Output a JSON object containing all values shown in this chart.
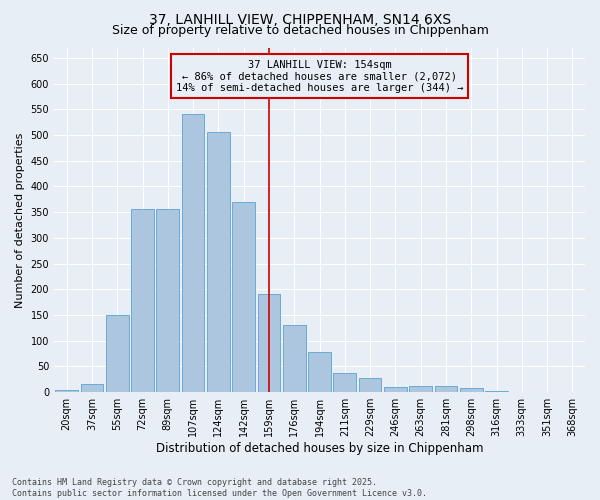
{
  "title_line1": "37, LANHILL VIEW, CHIPPENHAM, SN14 6XS",
  "title_line2": "Size of property relative to detached houses in Chippenham",
  "xlabel": "Distribution of detached houses by size in Chippenham",
  "ylabel": "Number of detached properties",
  "categories": [
    "20sqm",
    "37sqm",
    "55sqm",
    "72sqm",
    "89sqm",
    "107sqm",
    "124sqm",
    "142sqm",
    "159sqm",
    "176sqm",
    "194sqm",
    "211sqm",
    "229sqm",
    "246sqm",
    "263sqm",
    "281sqm",
    "298sqm",
    "316sqm",
    "333sqm",
    "351sqm",
    "368sqm"
  ],
  "values": [
    5,
    15,
    150,
    357,
    357,
    540,
    505,
    370,
    190,
    130,
    78,
    37,
    28,
    10,
    13,
    13,
    9,
    2,
    1,
    1,
    1
  ],
  "bar_color": "#adc6e0",
  "bar_edge_color": "#6aaad4",
  "vline_x": 8.0,
  "vline_color": "#cc0000",
  "annotation_line1": "37 LANHILL VIEW: 154sqm",
  "annotation_line2": "← 86% of detached houses are smaller (2,072)",
  "annotation_line3": "14% of semi-detached houses are larger (344) →",
  "annotation_box_color": "#cc0000",
  "annotation_fontsize": 7.5,
  "ylim": [
    0,
    670
  ],
  "yticks": [
    0,
    50,
    100,
    150,
    200,
    250,
    300,
    350,
    400,
    450,
    500,
    550,
    600,
    650
  ],
  "background_color": "#e8eef5",
  "footer_text": "Contains HM Land Registry data © Crown copyright and database right 2025.\nContains public sector information licensed under the Open Government Licence v3.0.",
  "title_fontsize": 10,
  "subtitle_fontsize": 9,
  "xlabel_fontsize": 8.5,
  "ylabel_fontsize": 8,
  "tick_fontsize": 7,
  "footer_fontsize": 6
}
